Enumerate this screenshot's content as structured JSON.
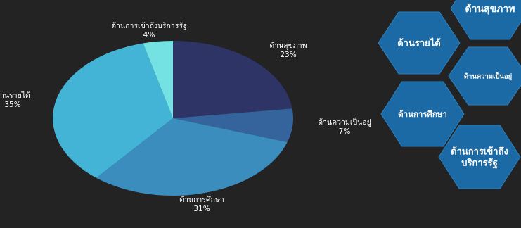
{
  "chart_data": {
    "type": "pie",
    "title": "",
    "slices": [
      {
        "label": "ด้านสุขภาพ",
        "value": 23,
        "value_label": "23%",
        "color": "#2e3566"
      },
      {
        "label": "ด้านความเป็นอยู่",
        "value": 7,
        "value_label": "7%",
        "color": "#35649c"
      },
      {
        "label": "ด้านการศึกษา",
        "value": 31,
        "value_label": "31%",
        "color": "#3a8dbd"
      },
      {
        "label": "ด้านรายได้",
        "value": 35,
        "value_label": "35%",
        "color": "#44b4d6"
      },
      {
        "label": "ด้านการเข้าถึงบริการรัฐ",
        "value": 4,
        "value_label": "4%",
        "color": "#74e2e3"
      }
    ]
  },
  "hexagons": [
    {
      "label_lines": [
        "ด้านสุขภาพ"
      ],
      "color": "#1c6aa5"
    },
    {
      "label_lines": [
        "ด้านรายได้"
      ],
      "color": "#1c6aa5"
    },
    {
      "label_lines": [
        "ด้านความเป็นอยู่"
      ],
      "color": "#1c6aa5"
    },
    {
      "label_lines": [
        "ด้านการศึกษา"
      ],
      "color": "#1c6aa5"
    },
    {
      "label_lines": [
        "ด้านการเข้าถึง",
        "บริการรัฐ"
      ],
      "color": "#1c6aa5"
    }
  ]
}
